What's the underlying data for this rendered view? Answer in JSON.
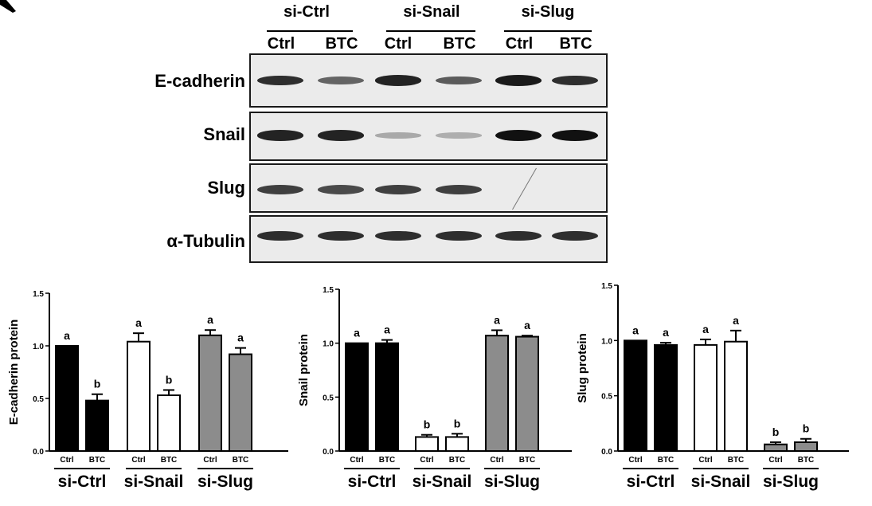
{
  "figure": {
    "group_labels": [
      "si-Ctrl",
      "si-Snail",
      "si-Slug"
    ],
    "lane_labels": [
      "Ctrl",
      "BTC",
      "Ctrl",
      "BTC",
      "Ctrl",
      "BTC"
    ]
  },
  "blot": {
    "rows": [
      {
        "label": "E-cadherin",
        "band_intensity": [
          0.85,
          0.55,
          0.9,
          0.6,
          0.95,
          0.85
        ]
      },
      {
        "label": "Snail",
        "band_intensity": [
          0.9,
          0.9,
          0.18,
          0.15,
          1.0,
          1.0
        ]
      },
      {
        "label": "Slug",
        "band_intensity": [
          0.75,
          0.7,
          0.75,
          0.75,
          0.0,
          0.0
        ]
      },
      {
        "label": "α-Tubulin",
        "band_intensity": [
          0.85,
          0.85,
          0.85,
          0.85,
          0.85,
          0.85
        ]
      }
    ]
  },
  "colors": {
    "black": "#000000",
    "white": "#ffffff",
    "gray": "#8c8c8c"
  },
  "chart_data": [
    {
      "type": "bar",
      "ylabel": "E-cadherin protein",
      "ylim": [
        0,
        1.5
      ],
      "yticks": [
        "0.0",
        "0.5",
        "1.0",
        "1.5"
      ],
      "categories": [
        "Ctrl",
        "BTC",
        "Ctrl",
        "BTC",
        "Ctrl",
        "BTC"
      ],
      "groups": [
        "si-Ctrl",
        "si-Snail",
        "si-Slug"
      ],
      "values": [
        1.0,
        0.48,
        1.04,
        0.53,
        1.1,
        0.92
      ],
      "errors": [
        0.0,
        0.06,
        0.08,
        0.05,
        0.05,
        0.06
      ],
      "letters": [
        "a",
        "b",
        "a",
        "b",
        "a",
        "a"
      ],
      "bar_colors": [
        "black",
        "black",
        "white",
        "white",
        "gray",
        "gray"
      ]
    },
    {
      "type": "bar",
      "ylabel": "Snail protein",
      "ylim": [
        0,
        1.5
      ],
      "yticks": [
        "0.0",
        "0.5",
        "1.0",
        "1.5"
      ],
      "categories": [
        "Ctrl",
        "BTC",
        "Ctrl",
        "BTC",
        "Ctrl",
        "BTC"
      ],
      "groups": [
        "si-Ctrl",
        "si-Snail",
        "si-Slug"
      ],
      "values": [
        1.0,
        1.0,
        0.13,
        0.13,
        1.07,
        1.06
      ],
      "errors": [
        0.0,
        0.03,
        0.02,
        0.03,
        0.05,
        0.01
      ],
      "letters": [
        "a",
        "a",
        "b",
        "b",
        "a",
        "a"
      ],
      "bar_colors": [
        "black",
        "black",
        "white",
        "white",
        "gray",
        "gray"
      ]
    },
    {
      "type": "bar",
      "ylabel": "Slug protein",
      "ylim": [
        0,
        1.5
      ],
      "yticks": [
        "0.0",
        "0.5",
        "1.0",
        "1.5"
      ],
      "categories": [
        "Ctrl",
        "BTC",
        "Ctrl",
        "BTC",
        "Ctrl",
        "BTC"
      ],
      "groups": [
        "si-Ctrl",
        "si-Snail",
        "si-Slug"
      ],
      "values": [
        1.0,
        0.96,
        0.96,
        0.99,
        0.06,
        0.08
      ],
      "errors": [
        0.0,
        0.02,
        0.05,
        0.1,
        0.02,
        0.03
      ],
      "letters": [
        "a",
        "a",
        "a",
        "a",
        "b",
        "b"
      ],
      "bar_colors": [
        "black",
        "black",
        "white",
        "white",
        "gray",
        "gray"
      ]
    }
  ]
}
